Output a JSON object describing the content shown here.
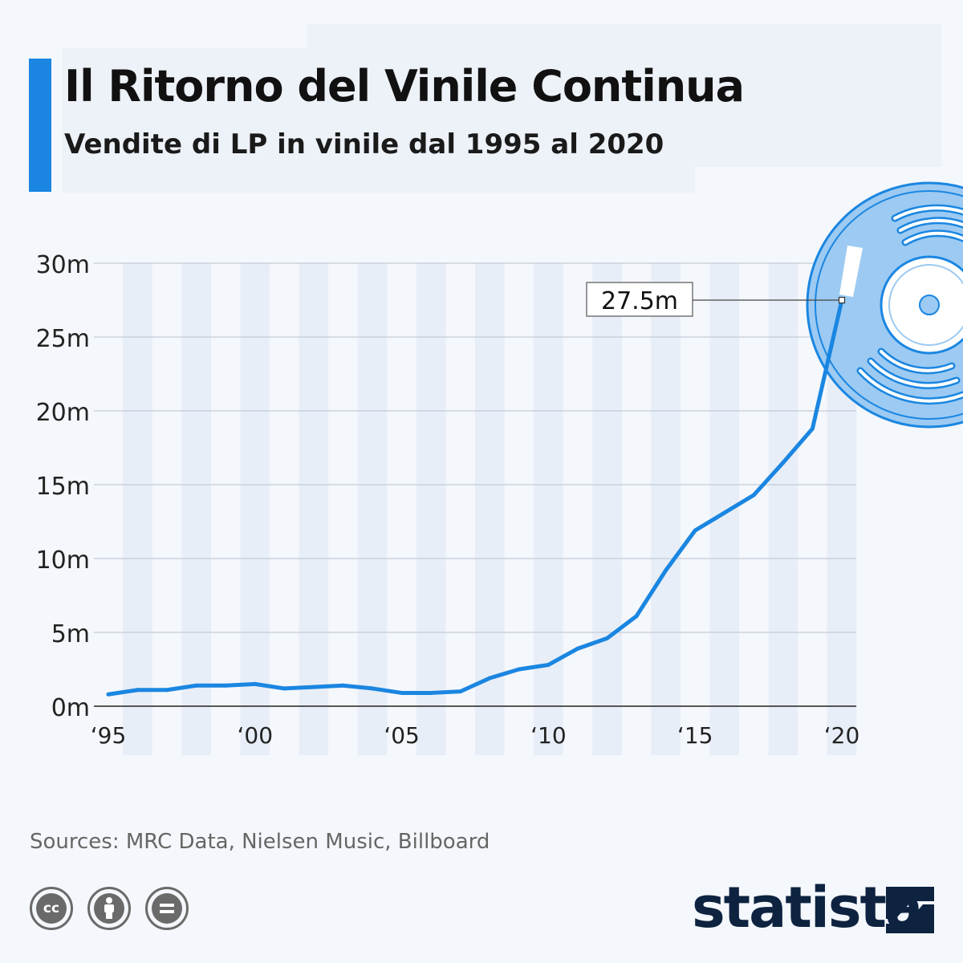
{
  "header": {
    "title": "Il Ritorno del Vinile Continua",
    "subtitle": "Vendite di LP in vinile dal 1995 al 2020"
  },
  "chart_data": {
    "type": "line",
    "title": "Il Ritorno del Vinile Continua",
    "subtitle": "Vendite di LP in vinile dal 1995 al 2020",
    "x": [
      1995,
      1996,
      1997,
      1998,
      1999,
      2000,
      2001,
      2002,
      2003,
      2004,
      2005,
      2006,
      2007,
      2008,
      2009,
      2010,
      2011,
      2012,
      2013,
      2014,
      2015,
      2016,
      2017,
      2018,
      2019,
      2020
    ],
    "series": [
      {
        "values": [
          0.8,
          1.1,
          1.1,
          1.4,
          1.4,
          1.5,
          1.2,
          1.3,
          1.4,
          1.2,
          0.9,
          0.9,
          1.0,
          1.9,
          2.5,
          2.8,
          3.9,
          4.6,
          6.1,
          9.2,
          11.9,
          13.1,
          14.3,
          16.5,
          18.8,
          27.5
        ]
      }
    ],
    "x_tick_values": [
      1995,
      2000,
      2005,
      2010,
      2015,
      2020
    ],
    "x_tick_labels": [
      "‘95",
      "‘00",
      "‘05",
      "‘10",
      "‘15",
      "‘20"
    ],
    "y_tick_values": [
      0,
      5,
      10,
      15,
      20,
      25,
      30
    ],
    "y_tick_labels": [
      "0m",
      "5m",
      "10m",
      "15m",
      "20m",
      "25m",
      "30m"
    ],
    "ylim": [
      0,
      30
    ],
    "xlim": [
      1995,
      2020
    ],
    "grid": true,
    "annotation": {
      "x": 2020,
      "value": 27.5,
      "label": "27.5m"
    },
    "colors": {
      "line": "#1a86e1",
      "band": "#e8eef7",
      "grid": "#b8c2cf"
    }
  },
  "footer": {
    "source": "Sources: MRC Data, Nielsen Music, Billboard",
    "license_icons": [
      "cc-icon",
      "attribution-icon",
      "no-derivatives-icon"
    ],
    "logo_text": "statista"
  }
}
